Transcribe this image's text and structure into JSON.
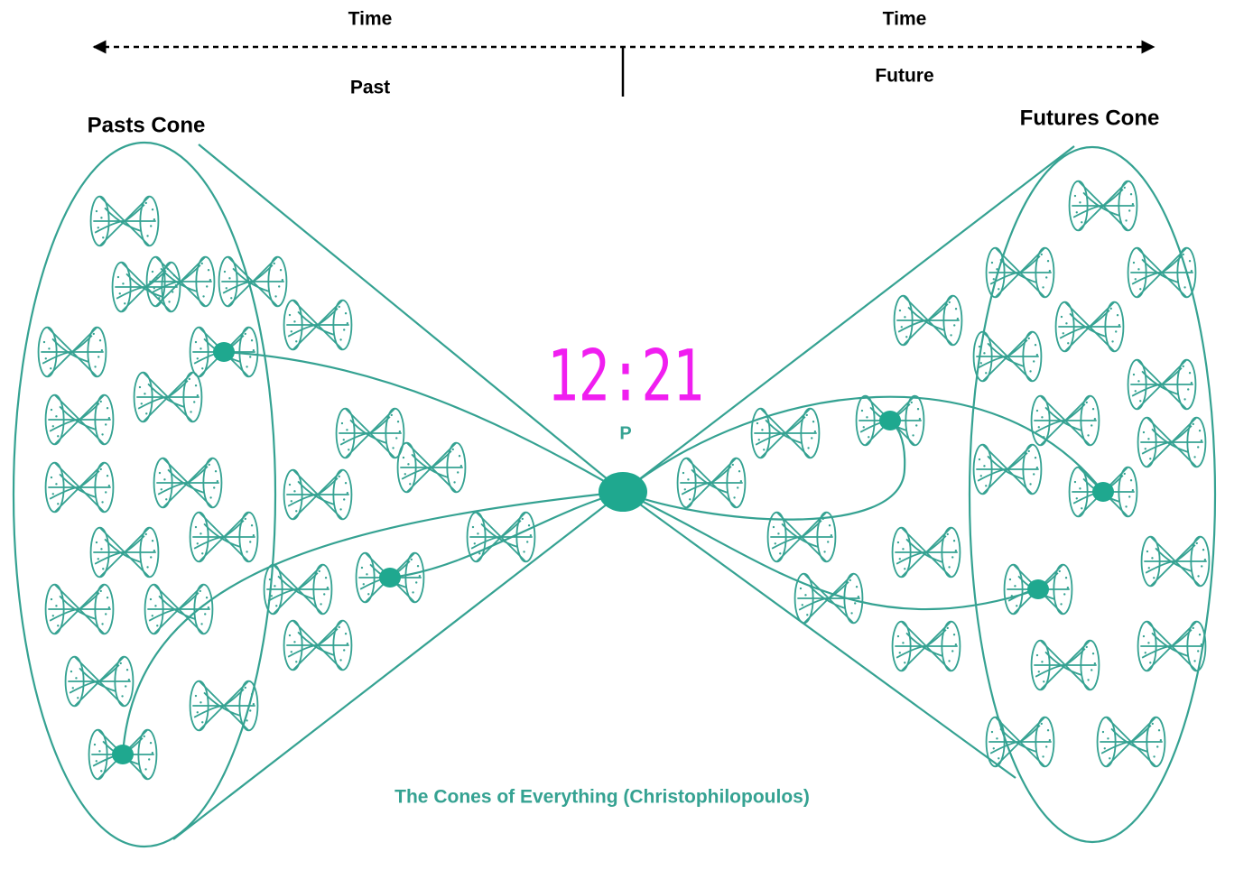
{
  "header": {
    "time_left": "Time",
    "time_right": "Time",
    "past": "Past",
    "future": "Future"
  },
  "cones": {
    "past": "Pasts Cone",
    "future": "Futures Cone"
  },
  "center": {
    "time": "12:21",
    "label": "P"
  },
  "caption": "The Cones of Everything (Christophilopoulos)"
}
